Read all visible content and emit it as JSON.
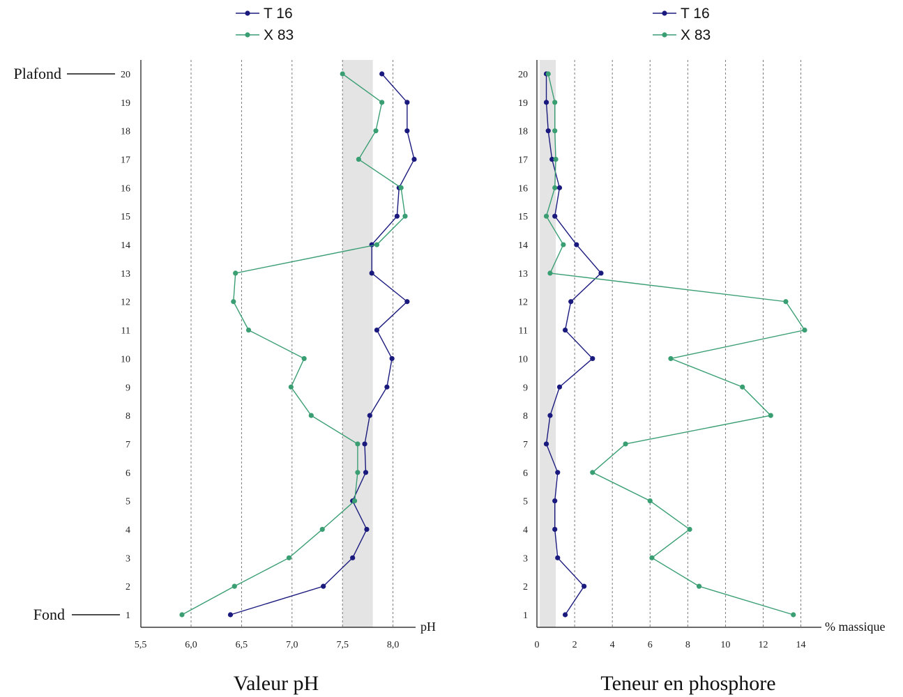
{
  "chart_data": [
    {
      "type": "line",
      "orientation": "vertical-profile",
      "title": "Valeur pH",
      "xlabel": "pH",
      "ylabel": "",
      "xlim": [
        5.5,
        8.3
      ],
      "ylim": [
        1,
        20
      ],
      "x_ticks": [
        5.5,
        6.0,
        6.5,
        7.0,
        7.5,
        8.0
      ],
      "x_tick_labels": [
        "5,5",
        "6,0",
        "6,5",
        "7,0",
        "7,5",
        "8,0"
      ],
      "y_ticks": [
        1,
        2,
        3,
        4,
        5,
        6,
        7,
        8,
        9,
        10,
        11,
        12,
        13,
        14,
        15,
        16,
        17,
        18,
        19,
        20
      ],
      "y_tick_labels": [
        "1",
        "2",
        "3",
        "4",
        "5",
        "6",
        "7",
        "8",
        "9",
        "10",
        "11",
        "12",
        "13",
        "14",
        "15",
        "16",
        "17",
        "18",
        "19",
        "20"
      ],
      "grid": "vertical-dashed",
      "shaded_band": [
        7.5,
        7.8
      ],
      "legend": {
        "placement": "top-center",
        "entries": [
          "T 16",
          "X 83"
        ]
      },
      "annotations": [
        {
          "text": "Plafond",
          "level": 20
        },
        {
          "text": "Fond",
          "level": 1
        }
      ],
      "series": [
        {
          "name": "T 16",
          "color": "#1a1a7e",
          "points": [
            [
              6.39,
              1
            ],
            [
              7.31,
              2
            ],
            [
              7.6,
              3
            ],
            [
              7.74,
              4
            ],
            [
              7.6,
              5
            ],
            [
              7.73,
              6
            ],
            [
              7.72,
              7
            ],
            [
              7.77,
              8
            ],
            [
              7.94,
              9
            ],
            [
              7.99,
              10
            ],
            [
              7.84,
              11
            ],
            [
              8.14,
              12
            ],
            [
              7.79,
              13
            ],
            [
              7.79,
              14
            ],
            [
              8.04,
              15
            ],
            [
              8.06,
              16
            ],
            [
              8.21,
              17
            ],
            [
              8.14,
              18
            ],
            [
              8.14,
              19
            ],
            [
              7.89,
              20
            ]
          ]
        },
        {
          "name": "X 83",
          "color": "#3a9e73",
          "points": [
            [
              5.91,
              1
            ],
            [
              6.43,
              2
            ],
            [
              6.97,
              3
            ],
            [
              7.3,
              4
            ],
            [
              7.62,
              5
            ],
            [
              7.65,
              6
            ],
            [
              7.65,
              7
            ],
            [
              7.19,
              8
            ],
            [
              6.99,
              9
            ],
            [
              7.12,
              10
            ],
            [
              6.57,
              11
            ],
            [
              6.42,
              12
            ],
            [
              6.44,
              13
            ],
            [
              7.84,
              14
            ],
            [
              8.12,
              15
            ],
            [
              8.08,
              16
            ],
            [
              7.66,
              17
            ],
            [
              7.83,
              18
            ],
            [
              7.89,
              19
            ],
            [
              7.5,
              20
            ]
          ]
        }
      ]
    },
    {
      "type": "line",
      "orientation": "vertical-profile",
      "title": "Teneur en phosphore",
      "xlabel": "% massique",
      "ylabel": "",
      "xlim": [
        0,
        14.8
      ],
      "ylim": [
        1,
        20
      ],
      "x_ticks": [
        0,
        2,
        4,
        6,
        8,
        10,
        12,
        14
      ],
      "x_tick_labels": [
        "0",
        "2",
        "4",
        "6",
        "8",
        "10",
        "12",
        "14"
      ],
      "y_ticks": [
        1,
        2,
        3,
        4,
        5,
        6,
        7,
        8,
        9,
        10,
        11,
        12,
        13,
        14,
        15,
        16,
        17,
        18,
        19,
        20
      ],
      "y_tick_labels": [
        "1",
        "2",
        "3",
        "4",
        "5",
        "6",
        "7",
        "8",
        "9",
        "10",
        "11",
        "12",
        "13",
        "14",
        "15",
        "16",
        "17",
        "18",
        "19",
        "20"
      ],
      "grid": "vertical-dashed",
      "shaded_band": [
        0.15,
        1.0
      ],
      "legend": {
        "placement": "top-center",
        "entries": [
          "T 16",
          "X 83"
        ]
      },
      "series": [
        {
          "name": "T 16",
          "color": "#1a1a7e",
          "points": [
            [
              1.5,
              1
            ],
            [
              2.5,
              2
            ],
            [
              1.1,
              3
            ],
            [
              0.95,
              4
            ],
            [
              0.95,
              5
            ],
            [
              1.1,
              6
            ],
            [
              0.5,
              7
            ],
            [
              0.7,
              8
            ],
            [
              1.2,
              9
            ],
            [
              2.95,
              10
            ],
            [
              1.5,
              11
            ],
            [
              1.8,
              12
            ],
            [
              3.4,
              13
            ],
            [
              2.1,
              14
            ],
            [
              0.95,
              15
            ],
            [
              1.2,
              16
            ],
            [
              0.8,
              17
            ],
            [
              0.6,
              18
            ],
            [
              0.5,
              19
            ],
            [
              0.5,
              20
            ]
          ]
        },
        {
          "name": "X 83",
          "color": "#3a9e73",
          "points": [
            [
              13.6,
              1
            ],
            [
              8.6,
              2
            ],
            [
              6.1,
              3
            ],
            [
              8.1,
              4
            ],
            [
              6.0,
              5
            ],
            [
              2.95,
              6
            ],
            [
              4.7,
              7
            ],
            [
              12.4,
              8
            ],
            [
              10.9,
              9
            ],
            [
              7.1,
              10
            ],
            [
              14.2,
              11
            ],
            [
              13.2,
              12
            ],
            [
              0.7,
              13
            ],
            [
              1.4,
              14
            ],
            [
              0.5,
              15
            ],
            [
              0.95,
              16
            ],
            [
              1.0,
              17
            ],
            [
              0.95,
              18
            ],
            [
              0.95,
              19
            ],
            [
              0.6,
              20
            ]
          ]
        }
      ]
    }
  ]
}
